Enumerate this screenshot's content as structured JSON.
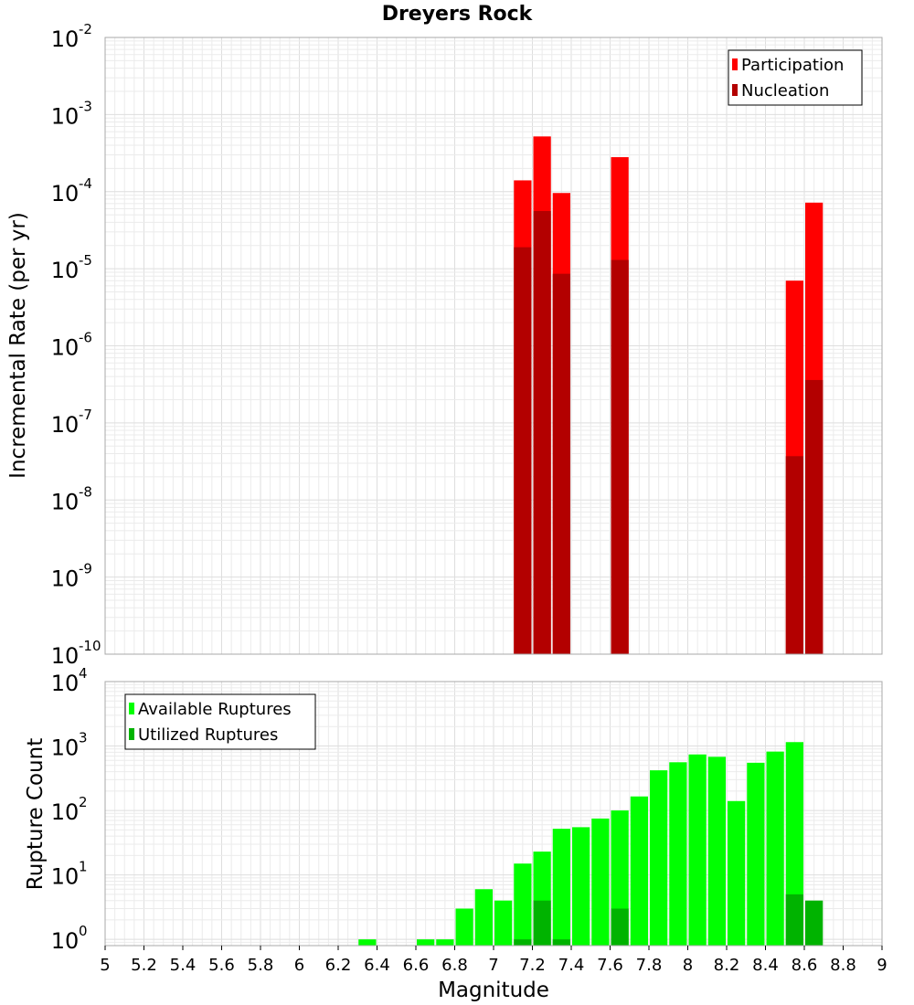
{
  "chart_data": [
    {
      "type": "bar",
      "title": "Dreyers Rock",
      "ylabel": "Incremental Rate (per yr)",
      "xlabel": "",
      "scale": "log",
      "xlim": [
        5,
        9
      ],
      "ylim": [
        1e-10,
        0.01
      ],
      "bin_width": 0.1,
      "legend_position": "top-right",
      "y_ticks": [
        {
          "base": "10",
          "exp": "-2"
        },
        {
          "base": "10",
          "exp": "-3"
        },
        {
          "base": "10",
          "exp": "-4"
        },
        {
          "base": "10",
          "exp": "-5"
        },
        {
          "base": "10",
          "exp": "-6"
        },
        {
          "base": "10",
          "exp": "-7"
        },
        {
          "base": "10",
          "exp": "-8"
        },
        {
          "base": "10",
          "exp": "-9"
        },
        {
          "base": "10",
          "exp": "-10"
        }
      ],
      "series": [
        {
          "name": "Participation",
          "color": "#ff0000",
          "x": [
            7.15,
            7.25,
            7.35,
            7.65,
            8.55,
            8.65
          ],
          "values": [
            0.00014,
            0.00052,
            9.6e-05,
            0.00028,
            7e-06,
            7.2e-05
          ]
        },
        {
          "name": "Nucleation",
          "color": "#b30000",
          "x": [
            7.15,
            7.25,
            7.35,
            7.65,
            8.55,
            8.65
          ],
          "values": [
            1.9e-05,
            5.6e-05,
            8.6e-06,
            1.3e-05,
            3.7e-08,
            3.6e-07
          ]
        }
      ]
    },
    {
      "type": "bar",
      "title": "",
      "ylabel": "Rupture Count",
      "xlabel": "Magnitude",
      "scale": "log",
      "xlim": [
        5,
        9
      ],
      "ylim": [
        0.8,
        10000
      ],
      "bin_width": 0.1,
      "legend_position": "top-left",
      "x_ticks": [
        "5",
        "5.2",
        "5.4",
        "5.6",
        "5.8",
        "6",
        "6.2",
        "6.4",
        "6.6",
        "6.8",
        "7",
        "7.2",
        "7.4",
        "7.6",
        "7.8",
        "8",
        "8.2",
        "8.4",
        "8.6",
        "8.8",
        "9"
      ],
      "y_ticks": [
        {
          "base": "10",
          "exp": "4"
        },
        {
          "base": "10",
          "exp": "3"
        },
        {
          "base": "10",
          "exp": "2"
        },
        {
          "base": "10",
          "exp": "1"
        },
        {
          "base": "10",
          "exp": "0"
        }
      ],
      "series": [
        {
          "name": "Available Ruptures",
          "color": "#00ff00",
          "x": [
            6.35,
            6.65,
            6.75,
            6.85,
            6.95,
            7.05,
            7.15,
            7.25,
            7.35,
            7.45,
            7.55,
            7.65,
            7.75,
            7.85,
            7.95,
            8.05,
            8.15,
            8.25,
            8.35,
            8.45,
            8.55
          ],
          "values": [
            1,
            1,
            1,
            3,
            6,
            4,
            15,
            23,
            52,
            55,
            75,
            100,
            165,
            420,
            560,
            740,
            680,
            140,
            550,
            820,
            1150
          ]
        },
        {
          "name": "Utilized Ruptures",
          "color": "#00b300",
          "x": [
            7.15,
            7.25,
            7.35,
            7.65,
            8.55,
            8.65
          ],
          "values": [
            1,
            4,
            1,
            3,
            5,
            4
          ]
        }
      ]
    }
  ]
}
